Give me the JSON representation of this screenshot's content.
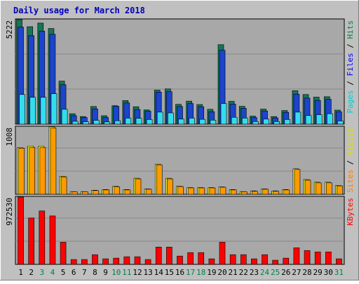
{
  "chart_data": [
    {
      "type": "bar",
      "title": "Daily usage for March 2018",
      "ymax_label": "5222",
      "ylabel_parts": [
        "Pages",
        "Files",
        "Hits"
      ],
      "ylim": [
        0,
        5222
      ],
      "categories": [
        "1",
        "2",
        "3",
        "4",
        "5",
        "6",
        "7",
        "8",
        "9",
        "10",
        "11",
        "12",
        "13",
        "14",
        "15",
        "16",
        "17",
        "18",
        "19",
        "20",
        "21",
        "22",
        "23",
        "24",
        "25",
        "26",
        "27",
        "28",
        "29",
        "30",
        "31"
      ],
      "weekend_days": [
        "3",
        "4",
        "10",
        "11",
        "17",
        "18",
        "24",
        "25",
        "31"
      ],
      "series": [
        {
          "name": "Hits",
          "color": "#117755",
          "values": [
            5222,
            4870,
            5050,
            4780,
            2150,
            520,
            380,
            880,
            420,
            920,
            1180,
            870,
            710,
            1700,
            1760,
            990,
            1150,
            980,
            740,
            3970,
            1140,
            890,
            400,
            750,
            380,
            680,
            1670,
            1480,
            1350,
            1370,
            700
          ]
        },
        {
          "name": "Files",
          "color": "#1c44cc",
          "values": [
            4850,
            4420,
            4650,
            4490,
            1970,
            420,
            330,
            760,
            330,
            890,
            1060,
            730,
            650,
            1600,
            1620,
            880,
            1030,
            870,
            620,
            3690,
            1000,
            790,
            330,
            660,
            310,
            590,
            1500,
            1300,
            1190,
            1240,
            610
          ]
        },
        {
          "name": "Pages",
          "color": "#33ddee",
          "values": [
            1480,
            1340,
            1340,
            1520,
            740,
            140,
            120,
            190,
            110,
            170,
            300,
            290,
            230,
            600,
            560,
            250,
            300,
            240,
            200,
            1030,
            340,
            300,
            130,
            250,
            130,
            230,
            600,
            430,
            470,
            520,
            160
          ]
        }
      ]
    },
    {
      "type": "bar",
      "ymax_label": "1008",
      "ylabel_parts": [
        "Sites",
        "Visits"
      ],
      "ylim": [
        0,
        1008
      ],
      "categories": [
        "1",
        "2",
        "3",
        "4",
        "5",
        "6",
        "7",
        "8",
        "9",
        "10",
        "11",
        "12",
        "13",
        "14",
        "15",
        "16",
        "17",
        "18",
        "19",
        "20",
        "21",
        "22",
        "23",
        "24",
        "25",
        "26",
        "27",
        "28",
        "29",
        "30",
        "31"
      ],
      "series": [
        {
          "name": "Visits",
          "color": "#ffff22",
          "values": [
            700,
            720,
            720,
            1008,
            270,
            40,
            40,
            60,
            70,
            120,
            70,
            240,
            80,
            450,
            240,
            120,
            100,
            100,
            100,
            110,
            70,
            40,
            50,
            80,
            50,
            70,
            380,
            220,
            180,
            180,
            130
          ]
        },
        {
          "name": "Sites",
          "color": "#ff9900",
          "values": [
            690,
            700,
            700,
            990,
            260,
            38,
            38,
            55,
            65,
            110,
            65,
            230,
            75,
            440,
            230,
            115,
            95,
            95,
            95,
            105,
            65,
            38,
            45,
            75,
            45,
            65,
            370,
            210,
            170,
            170,
            125
          ]
        }
      ]
    },
    {
      "type": "bar",
      "ymax_label": "972530",
      "ylabel_parts": [
        "KBytes"
      ],
      "ylim": [
        0,
        972530
      ],
      "categories": [
        "1",
        "2",
        "3",
        "4",
        "5",
        "6",
        "7",
        "8",
        "9",
        "10",
        "11",
        "12",
        "13",
        "14",
        "15",
        "16",
        "17",
        "18",
        "19",
        "20",
        "21",
        "22",
        "23",
        "24",
        "25",
        "26",
        "27",
        "28",
        "29",
        "30",
        "31"
      ],
      "series": [
        {
          "name": "KBytes",
          "color": "#ff0000",
          "values": [
            972530,
            670000,
            772000,
            700000,
            320000,
            70000,
            70000,
            140000,
            80000,
            90000,
            110000,
            110000,
            70000,
            250000,
            250000,
            120000,
            170000,
            170000,
            80000,
            320000,
            140000,
            140000,
            80000,
            140000,
            60000,
            90000,
            240000,
            200000,
            180000,
            180000,
            80000
          ]
        }
      ]
    }
  ]
}
